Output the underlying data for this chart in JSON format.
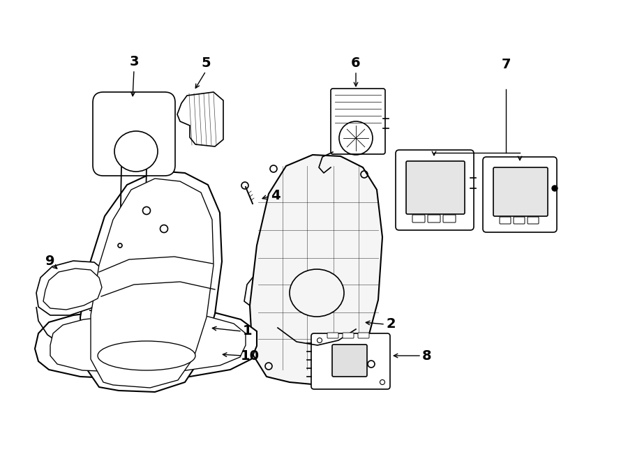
{
  "bg": "#ffffff",
  "lc": "#000000",
  "fig_w": 9.0,
  "fig_h": 6.61,
  "dpi": 100,
  "lw": 1.2
}
